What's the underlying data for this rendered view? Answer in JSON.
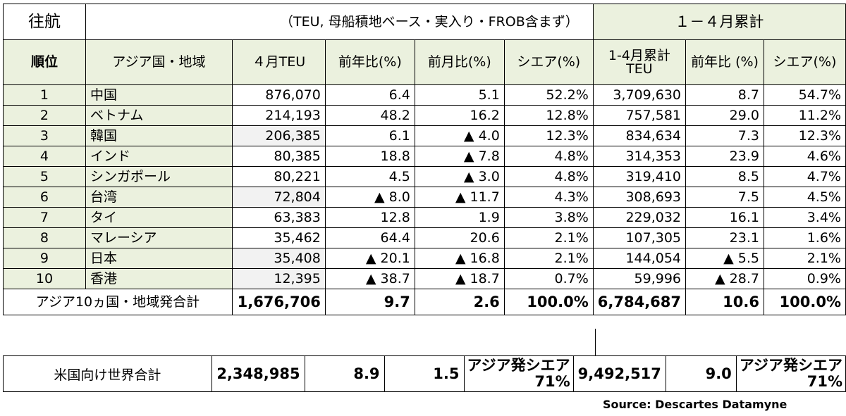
{
  "header": {
    "title": "往航",
    "note": "（TEU, 母船積地ベース・実入り・FROB含まず）",
    "cumulative_title": "１－４月累計"
  },
  "columns": [
    "順位",
    "アジア国・地域",
    "４月TEU",
    "前年比(%)",
    "前月比(%)",
    "シエア(%)",
    "1-4月累計 TEU",
    "前年比 (%)",
    "シエア(%)"
  ],
  "rows": [
    {
      "rank": "1",
      "name": "中国",
      "teu": "876,070",
      "yoy": "6.4",
      "mom": "5.1",
      "share": "52.2%",
      "cum": "3,709,630",
      "cum_yoy": "8.7",
      "cum_share": "54.7%"
    },
    {
      "rank": "2",
      "name": "ベトナム",
      "teu": "214,193",
      "yoy": "48.2",
      "mom": "16.2",
      "share": "12.8%",
      "cum": "757,581",
      "cum_yoy": "29.0",
      "cum_share": "11.2%"
    },
    {
      "rank": "3",
      "name": "韓国",
      "teu": "206,385",
      "yoy": "6.1",
      "mom": "▲ 4.0",
      "share": "12.3%",
      "cum": "834,634",
      "cum_yoy": "7.3",
      "cum_share": "12.3%"
    },
    {
      "rank": "4",
      "name": "インド",
      "teu": "80,385",
      "yoy": "18.8",
      "mom": "▲ 7.8",
      "share": "4.8%",
      "cum": "314,353",
      "cum_yoy": "23.9",
      "cum_share": "4.6%"
    },
    {
      "rank": "5",
      "name": "シンガポール",
      "teu": "80,221",
      "yoy": "4.5",
      "mom": "▲ 3.0",
      "share": "4.8%",
      "cum": "319,410",
      "cum_yoy": "8.5",
      "cum_share": "4.7%"
    },
    {
      "rank": "6",
      "name": "台湾",
      "teu": "72,804",
      "yoy": "▲ 8.0",
      "mom": "▲ 11.7",
      "share": "4.3%",
      "cum": "308,693",
      "cum_yoy": "7.5",
      "cum_share": "4.5%"
    },
    {
      "rank": "7",
      "name": "タイ",
      "teu": "63,383",
      "yoy": "12.8",
      "mom": "1.9",
      "share": "3.8%",
      "cum": "229,032",
      "cum_yoy": "16.1",
      "cum_share": "3.4%"
    },
    {
      "rank": "8",
      "name": "マレーシア",
      "teu": "35,462",
      "yoy": "64.4",
      "mom": "20.6",
      "share": "2.1%",
      "cum": "107,305",
      "cum_yoy": "23.1",
      "cum_share": "1.6%"
    },
    {
      "rank": "9",
      "name": "日本",
      "teu": "35,408",
      "yoy": "▲ 20.1",
      "mom": "▲ 16.8",
      "share": "2.1%",
      "cum": "144,054",
      "cum_yoy": "▲ 5.5",
      "cum_share": "2.1%"
    },
    {
      "rank": "10",
      "name": "香港",
      "teu": "12,395",
      "yoy": "▲ 38.7",
      "mom": "▲ 18.7",
      "share": "0.7%",
      "cum": "59,996",
      "cum_yoy": "▲ 28.7",
      "cum_share": "0.9%"
    }
  ],
  "total": {
    "label": "アジア10ヵ国・地域発合計",
    "teu": "1,676,706",
    "yoy": "9.7",
    "mom": "2.6",
    "share": "100.0%",
    "cum": "6,784,687",
    "cum_yoy": "10.6",
    "cum_share": "100.0%"
  },
  "us_total": {
    "label": "米国向け世界合計",
    "teu": "2,348,985",
    "yoy": "8.9",
    "mom": "1.5",
    "share_label": "アジア発シエア",
    "share": "71%",
    "cum": "9,492,517",
    "cum_yoy": "9.0",
    "cum_share_label": "アジア発シエア",
    "cum_share": "71%"
  },
  "source": "Source: Descartes Datamyne",
  "colors": {
    "header_green": "#ebf1de",
    "shade_grey": "#f2f2f2"
  }
}
